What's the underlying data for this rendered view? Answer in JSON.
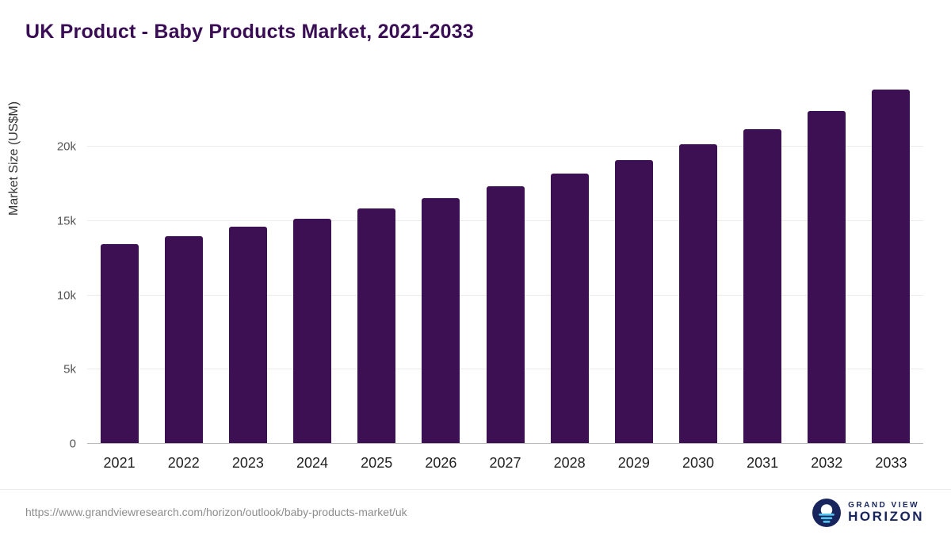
{
  "title": "UK Product - Baby Products Market, 2021-2033",
  "chart_data": {
    "type": "bar",
    "title": "UK Product - Baby Products Market, 2021-2033",
    "categories": [
      "2021",
      "2022",
      "2023",
      "2024",
      "2025",
      "2026",
      "2027",
      "2028",
      "2029",
      "2030",
      "2031",
      "2032",
      "2033"
    ],
    "values": [
      13450,
      14000,
      14600,
      15150,
      15850,
      16550,
      17350,
      18200,
      19100,
      20150,
      21200,
      22400,
      23850
    ],
    "xlabel": "",
    "ylabel": "Market Size (US$M)",
    "ylim": [
      0,
      24000
    ],
    "yticks": [
      {
        "value": 0,
        "label": "0"
      },
      {
        "value": 5000,
        "label": "5k"
      },
      {
        "value": 10000,
        "label": "10k"
      },
      {
        "value": 15000,
        "label": "15k"
      },
      {
        "value": 20000,
        "label": "20k"
      }
    ],
    "grid": true,
    "legend": false
  },
  "colors": {
    "bar": "#3d1054",
    "title": "#3a0e54",
    "grid": "#ebebeb",
    "axis_line": "#b9b9b9",
    "brand_navy": "#17255c",
    "brand_cyan": "#55c3ef"
  },
  "footer": {
    "source_url": "https://www.grandviewresearch.com/horizon/outlook/baby-products-market/uk",
    "brand": {
      "line1": "GRAND VIEW",
      "line2": "HORIZON"
    }
  }
}
